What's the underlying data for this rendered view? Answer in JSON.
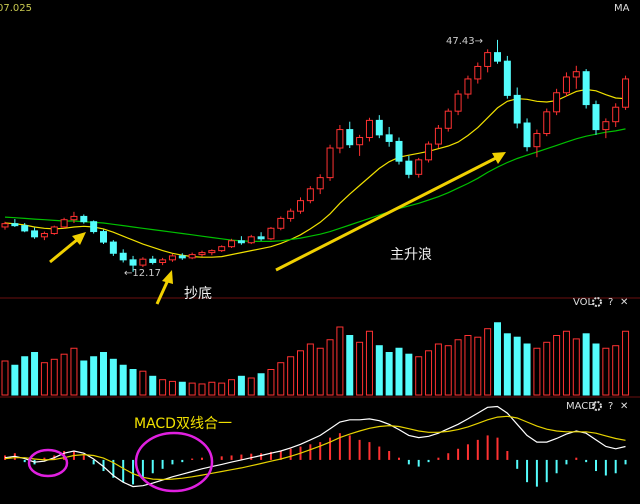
{
  "chart_data": [
    {
      "type": "candlestick",
      "title": "MA",
      "corner_label": "07.025",
      "up_color": "#ff3232",
      "down_color": "#54fcfc",
      "ylim": [
        8.2,
        53.5
      ],
      "open": [
        19.0,
        19.5,
        19.2,
        18.4,
        17.5,
        18.0,
        19.0,
        20.1,
        20.6,
        19.8,
        18.3,
        16.7,
        15.0,
        14.0,
        13.2,
        14.1,
        13.6,
        14.0,
        14.6,
        14.3,
        14.8,
        15.1,
        15.4,
        16.0,
        16.9,
        16.6,
        17.5,
        17.2,
        18.8,
        20.3,
        21.4,
        23.0,
        24.8,
        26.5,
        31.0,
        33.8,
        31.5,
        32.6,
        35.2,
        33.0,
        32.0,
        29.0,
        27.0,
        29.2,
        31.6,
        34.0,
        36.6,
        39.2,
        41.5,
        43.4,
        45.5,
        44.2,
        39.0,
        34.8,
        31.2,
        33.2,
        36.5,
        39.4,
        41.8,
        42.6,
        37.6,
        33.8,
        35.0,
        37.2
      ],
      "high": [
        19.8,
        20.2,
        19.6,
        18.9,
        18.3,
        19.2,
        20.4,
        21.3,
        20.9,
        20.0,
        18.6,
        17.0,
        15.6,
        14.6,
        14.4,
        14.6,
        14.3,
        14.9,
        15.0,
        15.1,
        15.4,
        15.6,
        16.2,
        17.2,
        17.6,
        17.8,
        18.2,
        19.0,
        20.6,
        21.8,
        23.5,
        25.2,
        27.0,
        31.5,
        34.5,
        35.0,
        33.0,
        35.6,
        36.0,
        34.2,
        32.6,
        29.8,
        29.5,
        32.0,
        34.5,
        37.0,
        39.8,
        42.0,
        44.0,
        46.0,
        47.43,
        45.0,
        40.2,
        35.5,
        33.8,
        37.0,
        40.0,
        42.5,
        43.5,
        43.0,
        38.2,
        35.5,
        37.8,
        42.0
      ],
      "low": [
        18.6,
        19.0,
        18.2,
        17.2,
        17.0,
        17.8,
        18.8,
        19.6,
        19.5,
        18.0,
        16.4,
        14.6,
        13.6,
        12.17,
        12.9,
        13.3,
        13.2,
        13.7,
        14.0,
        14.1,
        14.5,
        14.7,
        15.2,
        15.8,
        16.3,
        16.4,
        16.9,
        17.0,
        18.5,
        19.8,
        21.0,
        22.6,
        24.0,
        26.0,
        30.2,
        31.0,
        29.8,
        32.0,
        32.5,
        31.2,
        28.5,
        26.4,
        26.5,
        28.8,
        31.0,
        33.5,
        36.0,
        38.5,
        40.8,
        42.5,
        43.8,
        38.5,
        34.0,
        30.5,
        29.6,
        32.8,
        36.0,
        38.8,
        40.0,
        37.0,
        33.0,
        32.5,
        34.2,
        36.8
      ],
      "close": [
        19.5,
        19.2,
        18.4,
        17.5,
        18.0,
        19.0,
        20.1,
        20.6,
        19.8,
        18.3,
        16.7,
        15.0,
        14.0,
        13.2,
        14.1,
        13.6,
        14.0,
        14.6,
        14.3,
        14.8,
        15.1,
        15.4,
        16.0,
        16.9,
        16.6,
        17.5,
        17.2,
        18.8,
        20.3,
        21.4,
        23.0,
        24.8,
        26.5,
        31.0,
        33.8,
        31.5,
        32.6,
        35.2,
        33.0,
        32.0,
        29.0,
        27.0,
        29.2,
        31.6,
        34.0,
        36.6,
        39.2,
        41.5,
        43.4,
        45.5,
        44.2,
        39.0,
        34.8,
        31.2,
        33.2,
        36.5,
        39.4,
        41.8,
        42.6,
        37.6,
        33.8,
        35.0,
        37.2,
        41.5
      ],
      "series": [
        {
          "color": "#f0e000",
          "values": [
            19.6,
            19.5,
            19.3,
            19.0,
            18.8,
            18.7,
            18.8,
            19.0,
            19.1,
            19.0,
            18.7,
            18.2,
            17.6,
            17.0,
            16.4,
            15.9,
            15.4,
            15.0,
            14.7,
            14.5,
            14.4,
            14.4,
            14.5,
            14.8,
            15.1,
            15.4,
            15.7,
            16.0,
            16.5,
            17.1,
            17.8,
            18.7,
            19.7,
            21.0,
            22.6,
            24.0,
            25.3,
            26.6,
            27.9,
            28.9,
            29.6,
            29.9,
            30.2,
            30.5,
            30.9,
            31.3,
            31.9,
            32.9,
            34.1,
            35.6,
            37.1,
            38.1,
            38.5,
            38.4,
            38.1,
            38.0,
            38.2,
            38.9,
            39.6,
            39.9,
            39.7,
            39.1,
            38.6,
            38.5
          ]
        },
        {
          "color": "#00c000",
          "values": [
            20.5,
            20.4,
            20.3,
            20.2,
            20.1,
            20.0,
            19.9,
            19.9,
            19.8,
            19.7,
            19.6,
            19.4,
            19.2,
            19.0,
            18.8,
            18.6,
            18.4,
            18.2,
            18.0,
            17.8,
            17.6,
            17.4,
            17.2,
            17.0,
            16.9,
            16.8,
            16.8,
            16.8,
            16.9,
            17.1,
            17.3,
            17.6,
            17.9,
            18.3,
            18.8,
            19.3,
            19.8,
            20.3,
            20.8,
            21.3,
            21.8,
            22.2,
            22.6,
            23.1,
            23.6,
            24.2,
            24.9,
            25.6,
            26.4,
            27.3,
            28.1,
            28.8,
            29.4,
            29.9,
            30.4,
            30.9,
            31.4,
            31.9,
            32.4,
            32.8,
            33.1,
            33.4,
            33.6,
            33.9
          ]
        }
      ]
    },
    {
      "type": "bar",
      "title": "VOL",
      "help": "?",
      "close_button": "✕",
      "ylim": [
        0,
        100
      ],
      "values": [
        40,
        35,
        45,
        50,
        38,
        42,
        48,
        55,
        40,
        45,
        50,
        42,
        35,
        30,
        28,
        22,
        18,
        16,
        15,
        14,
        13,
        15,
        14,
        18,
        22,
        20,
        25,
        30,
        38,
        45,
        52,
        60,
        55,
        65,
        80,
        70,
        62,
        75,
        58,
        50,
        55,
        48,
        45,
        52,
        60,
        58,
        65,
        70,
        68,
        78,
        85,
        72,
        68,
        60,
        55,
        62,
        70,
        75,
        66,
        72,
        60,
        55,
        58,
        75
      ]
    },
    {
      "type": "macd",
      "title": "MACD",
      "help": "?",
      "close_button": "✕",
      "ylim": [
        -9,
        13
      ],
      "up_color": "#ff3232",
      "down_color": "#54fcfc",
      "histogram": [
        1,
        1.5,
        -0.5,
        -1,
        0.5,
        1,
        2,
        2,
        1,
        -1,
        -2.5,
        -4,
        -5,
        -5.5,
        -4,
        -3,
        -2,
        -1,
        -0.5,
        0.3,
        0.5,
        0.6,
        0.8,
        1,
        1.2,
        1.4,
        1.5,
        1.8,
        2,
        2.5,
        3,
        3.5,
        4,
        5,
        6,
        5.5,
        4.5,
        4,
        3,
        2,
        0.5,
        -1,
        -1.5,
        -0.5,
        0.5,
        1.5,
        2.5,
        3.5,
        4.5,
        5.5,
        5,
        2,
        -2,
        -5,
        -6,
        -5,
        -3,
        -1,
        0.5,
        -0.5,
        -2.5,
        -3.5,
        -3,
        -1
      ],
      "series": [
        {
          "color": "#ffffff",
          "values": [
            0.5,
            0.8,
            0.3,
            -0.5,
            -0.3,
            0.5,
            1.5,
            2,
            1.5,
            0.2,
            -1.5,
            -3.5,
            -5,
            -6,
            -5.8,
            -5.2,
            -4.5,
            -3.8,
            -3.2,
            -2.6,
            -2,
            -1.5,
            -1,
            -0.5,
            0,
            0.5,
            1,
            1.5,
            2,
            2.7,
            3.5,
            4.5,
            5.5,
            7,
            8.5,
            9,
            9,
            9.2,
            8.8,
            8,
            6.8,
            5.5,
            5,
            5.3,
            6,
            7,
            8,
            9.2,
            10.5,
            11.8,
            12,
            10.5,
            8,
            5.5,
            4,
            4,
            4.8,
            5.8,
            6.5,
            6,
            4.5,
            3,
            2.5,
            3
          ]
        },
        {
          "color": "#e6d200",
          "values": [
            0.3,
            0.5,
            0.5,
            0.2,
            0,
            0.1,
            0.5,
            1,
            1.2,
            1,
            0.4,
            -0.6,
            -1.9,
            -3.1,
            -3.9,
            -4.3,
            -4.4,
            -4.3,
            -4.1,
            -3.8,
            -3.4,
            -3,
            -2.6,
            -2.2,
            -1.8,
            -1.3,
            -0.8,
            -0.3,
            0.2,
            0.8,
            1.5,
            2.3,
            3.1,
            4,
            5,
            5.8,
            6.5,
            7.1,
            7.5,
            7.7,
            7.5,
            7,
            6.5,
            6.2,
            6.2,
            6.4,
            6.8,
            7.4,
            8.2,
            9,
            9.6,
            9.8,
            9.4,
            8.5,
            7.6,
            6.9,
            6.5,
            6.3,
            6.3,
            6.3,
            6,
            5.4,
            4.8,
            4.4
          ]
        }
      ]
    }
  ],
  "annotations": {
    "high_label": "47.43→",
    "low_label": "←12.17",
    "buy_bottom": "抄底",
    "main_wave": "主升浪",
    "macd_note": "MACD双线合一"
  }
}
